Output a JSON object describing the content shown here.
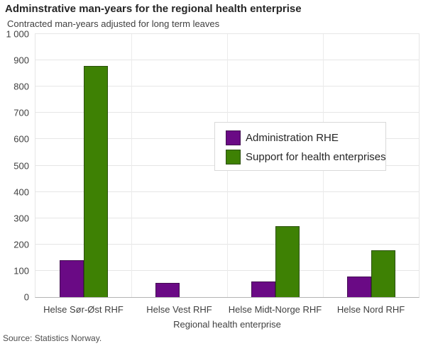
{
  "header": {
    "title": "Adminstrative man-years for the regional health enterprise",
    "subtitle": "Contracted man-years adjusted for long term leaves"
  },
  "chart_data": {
    "type": "bar",
    "title": "Adminstrative man-years for the regional health enterprise",
    "subtitle": "Contracted man-years adjusted for long term leaves",
    "categories": [
      "Helse Sør-Øst RHF",
      "Helse Vest RHF",
      "Helse Midt-Norge RHF",
      "Helse Nord RHF"
    ],
    "series": [
      {
        "name": "Administration RHE",
        "color": "#6a0a85",
        "values": [
          140,
          55,
          60,
          78
        ]
      },
      {
        "name": "Support for health enterprises",
        "color": "#3e8104",
        "values": [
          880,
          0,
          270,
          178
        ]
      }
    ],
    "xlabel": "Regional health enterprise",
    "ylabel": "",
    "ylim": [
      0,
      1000
    ],
    "ytick_interval": 100,
    "ytick_labels": [
      "0",
      "100",
      "200",
      "300",
      "400",
      "500",
      "600",
      "700",
      "800",
      "900",
      "1 000"
    ],
    "grid": true,
    "legend_position": "inside-center-right"
  },
  "footer": {
    "source": "Source: Statistics Norway."
  }
}
